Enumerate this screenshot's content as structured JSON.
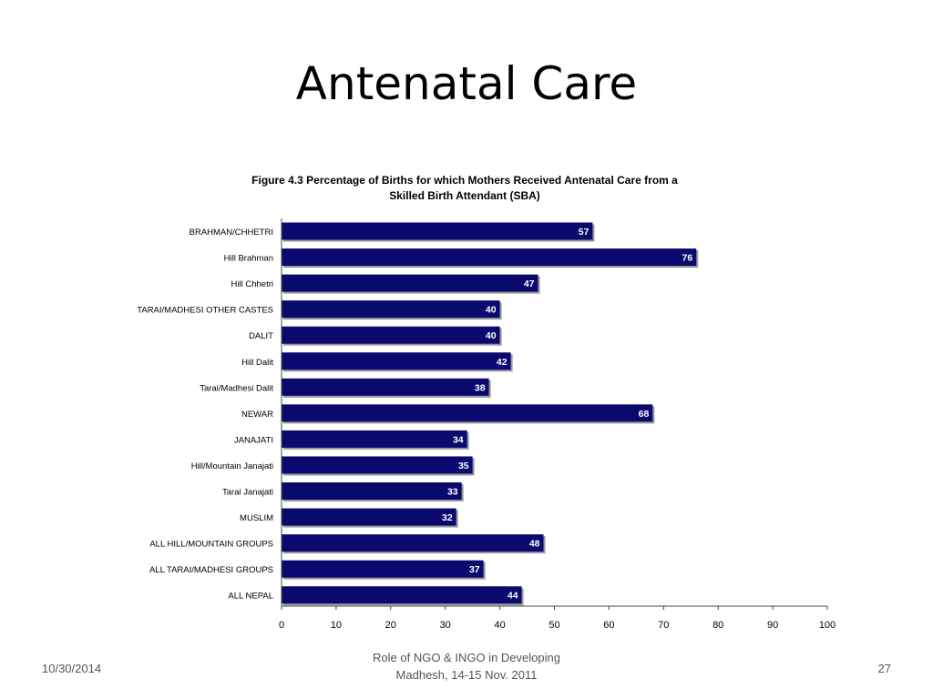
{
  "slide": {
    "title": "Antenatal Care"
  },
  "figure": {
    "caption_line1": "Figure 4.3  Percentage of Births for which Mothers Received Antenatal Care from a",
    "caption_line2": "Skilled Birth Attendant (SBA)"
  },
  "chart_data": {
    "type": "bar",
    "orientation": "horizontal",
    "title": "Figure 4.3  Percentage of Births for which Mothers Received Antenatal Care from a Skilled Birth Attendant (SBA)",
    "categories": [
      "BRAHMAN/CHHETRI",
      "Hill Brahman",
      "Hill Chhetri",
      "TARAI/MADHESI OTHER CASTES",
      "DALIT",
      "Hill Dalit",
      "Tarai/Madhesi Dalit",
      "NEWAR",
      "JANAJATI",
      "Hill/Mountain Janajati",
      "Tarai Janajati",
      "MUSLIM",
      "ALL HILL/MOUNTAIN GROUPS",
      "ALL TARAI/MADHESI GROUPS",
      "ALL NEPAL"
    ],
    "values": [
      57,
      76,
      47,
      40,
      40,
      42,
      38,
      68,
      34,
      35,
      33,
      32,
      48,
      37,
      44
    ],
    "xlim": [
      0,
      100
    ],
    "xticks": [
      0,
      10,
      20,
      30,
      40,
      50,
      60,
      70,
      80,
      90,
      100
    ],
    "xlabel": "",
    "ylabel": "",
    "grid": false,
    "bar_color": "#0a0a6e",
    "label_color": "#ffffff"
  },
  "footer": {
    "date": "10/30/2014",
    "center_line1": "Role of NGO & INGO in Developing",
    "center_line2": "Madhesh, 14-15 Nov. 2011",
    "page": "27"
  }
}
